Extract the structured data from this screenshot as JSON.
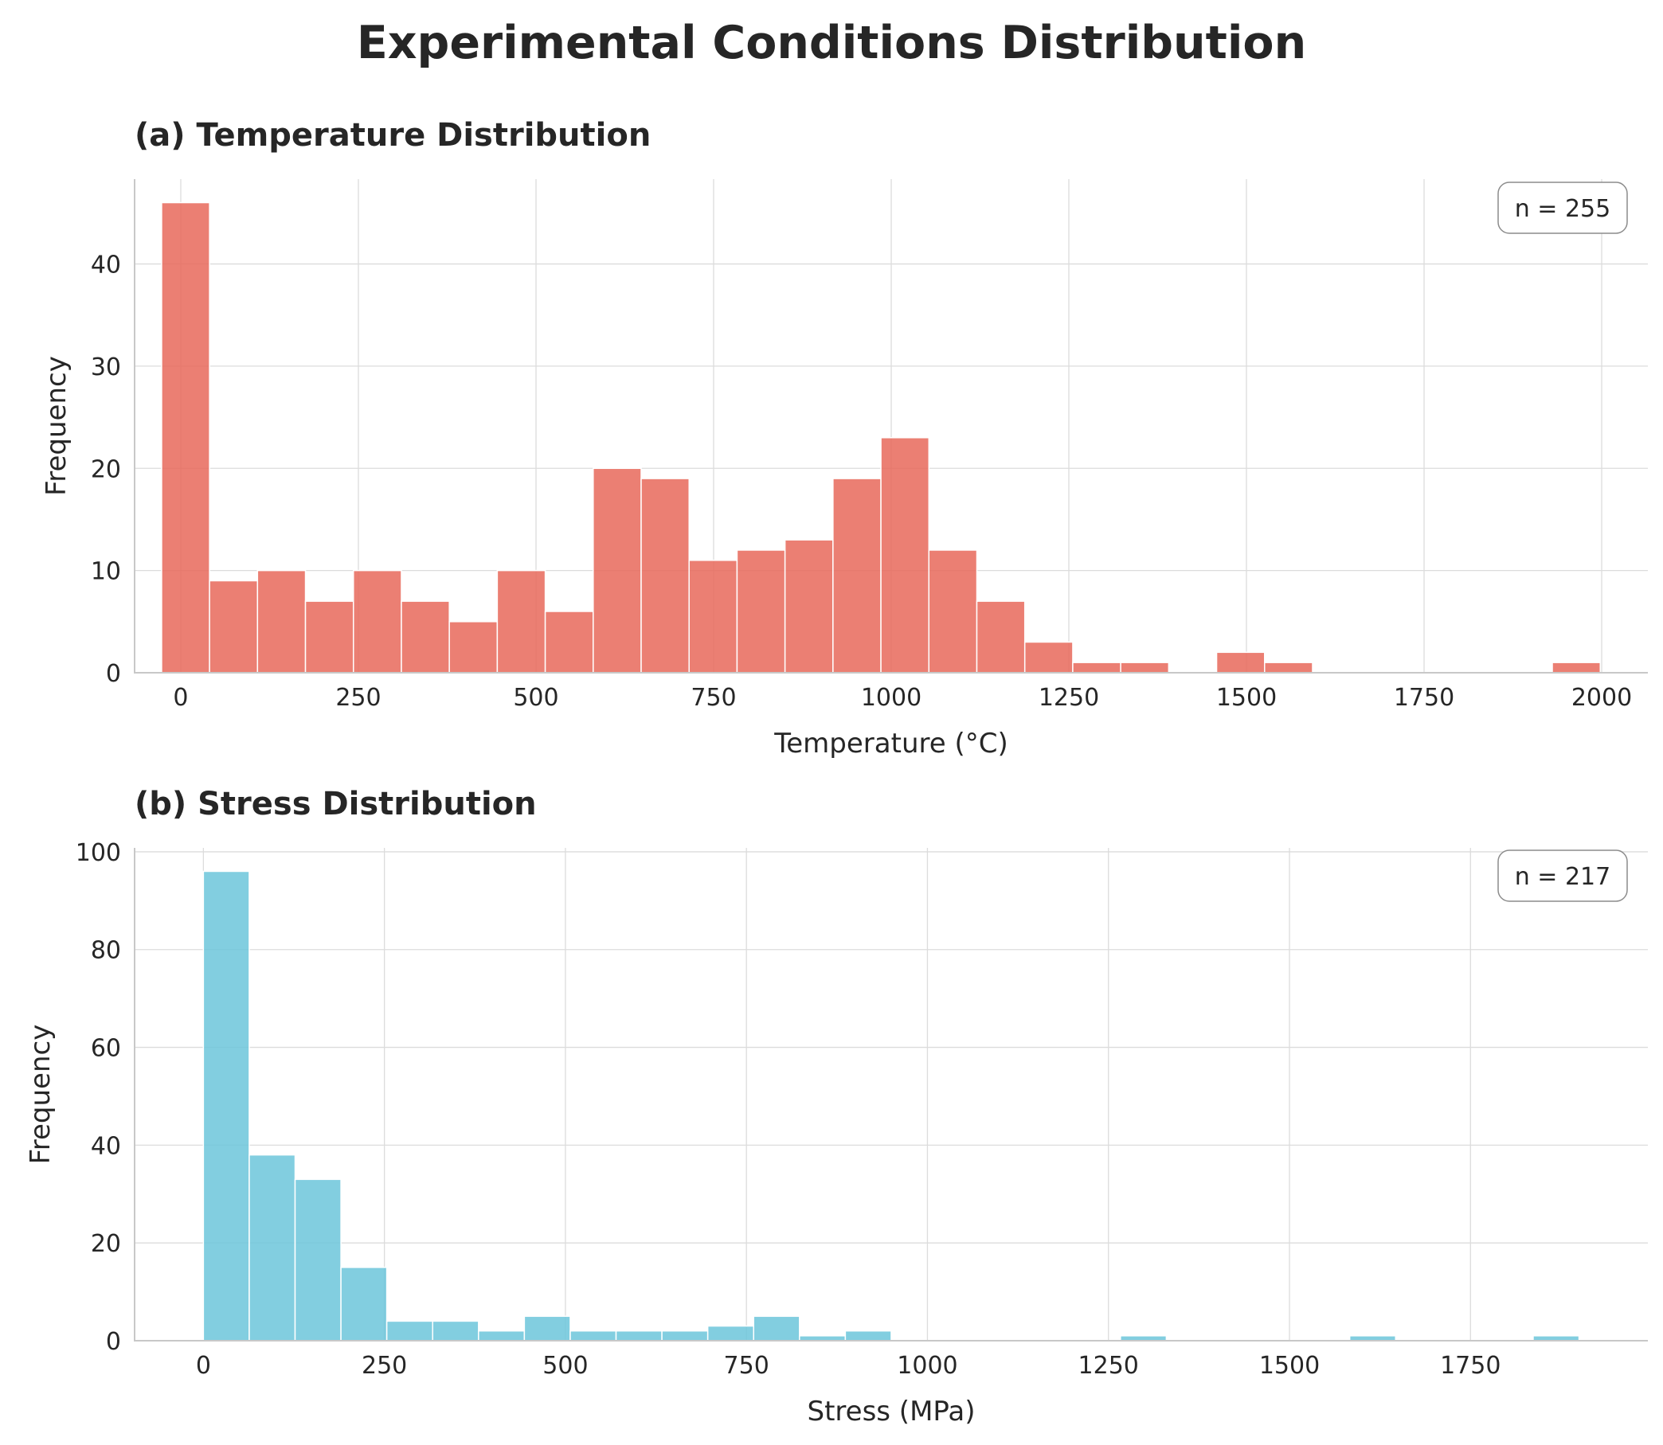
{
  "chart_data": [
    {
      "type": "bar",
      "panel_title": "(a) Temperature Distribution",
      "title": "Experimental Conditions Distribution",
      "xlabel": "Temperature (°C)",
      "ylabel": "Frequency",
      "xlim": [
        -65,
        2065
      ],
      "ylim": [
        0,
        48.3
      ],
      "xticks": [
        0,
        250,
        500,
        750,
        1000,
        1250,
        1500,
        1750,
        2000
      ],
      "yticks": [
        0,
        10,
        20,
        30,
        40
      ],
      "grid": true,
      "color": "#E8695A",
      "bin_start": -27,
      "bin_width": 67.5,
      "values": [
        46,
        9,
        10,
        7,
        10,
        7,
        5,
        10,
        6,
        20,
        19,
        11,
        12,
        13,
        19,
        23,
        12,
        7,
        3,
        1,
        1,
        0,
        2,
        1,
        0,
        0,
        0,
        0,
        0,
        1
      ],
      "annotation": "n = 255",
      "legend": "top-right"
    },
    {
      "type": "bar",
      "panel_title": "(b) Stress Distribution",
      "xlabel": "Stress (MPa)",
      "ylabel": "Frequency",
      "xlim": [
        -95,
        1995
      ],
      "ylim": [
        0,
        100.8
      ],
      "xticks": [
        0,
        250,
        500,
        750,
        1000,
        1250,
        1500,
        1750
      ],
      "yticks": [
        0,
        20,
        40,
        60,
        80,
        100
      ],
      "grid": true,
      "color": "#6CC5DB",
      "bin_start": 0,
      "bin_width": 63.33,
      "values": [
        96,
        38,
        33,
        15,
        4,
        4,
        2,
        5,
        2,
        2,
        2,
        3,
        5,
        1,
        2,
        0,
        0,
        0,
        0,
        0,
        1,
        0,
        0,
        0,
        0,
        1,
        0,
        0,
        0,
        1
      ],
      "annotation": "n = 217",
      "legend": "top-right"
    }
  ]
}
